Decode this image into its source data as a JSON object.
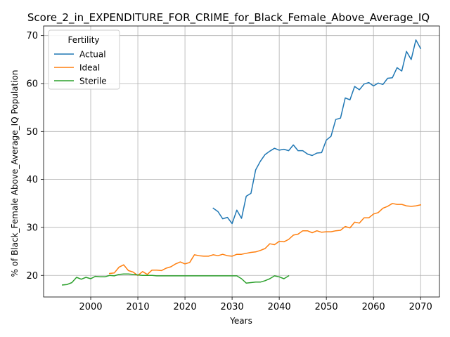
{
  "chart_data": {
    "type": "line",
    "title": "Score_2_in_EXPENDITURE_FOR_CRIME_for_Black_Female_Above_Average_IQ",
    "xlabel": "Years",
    "ylabel": "% of Black_Female Above_Average_IQ Population",
    "xlim": [
      1990,
      2074
    ],
    "ylim": [
      15.5,
      72
    ],
    "xticks": [
      2000,
      2010,
      2020,
      2030,
      2040,
      2050,
      2060,
      2070
    ],
    "yticks": [
      20,
      30,
      40,
      50,
      60,
      70
    ],
    "grid": true,
    "legend": {
      "title": "Fertility",
      "placement": "top-left"
    },
    "series": [
      {
        "name": "Actual",
        "color": "#1f77b4",
        "x": [
          2026,
          2027,
          2028,
          2029,
          2030,
          2031,
          2032,
          2033,
          2034,
          2035,
          2036,
          2037,
          2038,
          2039,
          2040,
          2041,
          2042,
          2043,
          2044,
          2045,
          2046,
          2047,
          2048,
          2049,
          2050,
          2051,
          2052,
          2053,
          2054,
          2055,
          2056,
          2057,
          2058,
          2059,
          2060,
          2061,
          2062,
          2063,
          2064,
          2065,
          2066,
          2067,
          2068,
          2069,
          2070
        ],
        "y": [
          34.0,
          33.3,
          31.8,
          32.1,
          30.8,
          33.6,
          31.9,
          36.5,
          37.1,
          42.0,
          43.8,
          45.2,
          45.9,
          46.5,
          46.1,
          46.3,
          46.0,
          47.2,
          46.0,
          46.0,
          45.3,
          45.0,
          45.5,
          45.6,
          48.2,
          49.0,
          52.5,
          52.8,
          57.0,
          56.6,
          59.4,
          58.7,
          59.9,
          60.2,
          59.5,
          60.1,
          59.8,
          61.1,
          61.2,
          63.3,
          62.6,
          66.7,
          65.0,
          69.1,
          67.3
        ]
      },
      {
        "name": "Ideal",
        "color": "#ff7f0e",
        "x": [
          2004,
          2005,
          2006,
          2007,
          2008,
          2009,
          2010,
          2011,
          2012,
          2013,
          2014,
          2015,
          2016,
          2017,
          2018,
          2019,
          2020,
          2021,
          2022,
          2023,
          2024,
          2025,
          2026,
          2027,
          2028,
          2029,
          2030,
          2031,
          2032,
          2033,
          2034,
          2035,
          2036,
          2037,
          2038,
          2039,
          2040,
          2041,
          2042,
          2043,
          2044,
          2045,
          2046,
          2047,
          2048,
          2049,
          2050,
          2051,
          2052,
          2053,
          2054,
          2055,
          2056,
          2057,
          2058,
          2059,
          2060,
          2061,
          2062,
          2063,
          2064,
          2065,
          2066,
          2067,
          2068,
          2069,
          2070
        ],
        "y": [
          20.4,
          20.5,
          21.7,
          22.2,
          21.0,
          20.7,
          20.0,
          20.8,
          20.2,
          21.1,
          21.1,
          21.0,
          21.5,
          21.8,
          22.4,
          22.8,
          22.4,
          22.7,
          24.3,
          24.1,
          24.0,
          24.0,
          24.3,
          24.1,
          24.4,
          24.1,
          24.0,
          24.4,
          24.4,
          24.6,
          24.8,
          24.9,
          25.2,
          25.6,
          26.6,
          26.4,
          27.1,
          27.0,
          27.5,
          28.4,
          28.6,
          29.3,
          29.3,
          28.9,
          29.3,
          29.0,
          29.1,
          29.1,
          29.3,
          29.4,
          30.2,
          29.9,
          31.1,
          30.9,
          32.0,
          32.0,
          32.8,
          33.1,
          34.0,
          34.4,
          35.0,
          34.8,
          34.8,
          34.5,
          34.4,
          34.5,
          34.7
        ]
      },
      {
        "name": "Sterile",
        "color": "#2ca02c",
        "x": [
          1994,
          1995,
          1996,
          1997,
          1998,
          1999,
          2000,
          2001,
          2002,
          2003,
          2004,
          2005,
          2006,
          2007,
          2008,
          2009,
          2010,
          2011,
          2012,
          2013,
          2014,
          2015,
          2016,
          2017,
          2018,
          2019,
          2020,
          2021,
          2022,
          2023,
          2024,
          2025,
          2026,
          2027,
          2028,
          2029,
          2030,
          2031,
          2032,
          2033,
          2034,
          2035,
          2036,
          2037,
          2038,
          2039,
          2040,
          2041,
          2042
        ],
        "y": [
          18.0,
          18.1,
          18.5,
          19.6,
          19.2,
          19.6,
          19.3,
          19.8,
          19.7,
          19.7,
          20.0,
          19.9,
          20.2,
          20.3,
          20.3,
          20.2,
          20.1,
          20.0,
          20.0,
          20.0,
          19.9,
          19.9,
          19.9,
          19.9,
          19.9,
          19.9,
          19.9,
          19.9,
          19.9,
          19.9,
          19.9,
          19.9,
          19.9,
          19.9,
          19.9,
          19.9,
          19.9,
          19.9,
          19.3,
          18.4,
          18.5,
          18.6,
          18.6,
          18.9,
          19.3,
          19.9,
          19.7,
          19.3,
          19.9
        ]
      }
    ]
  }
}
